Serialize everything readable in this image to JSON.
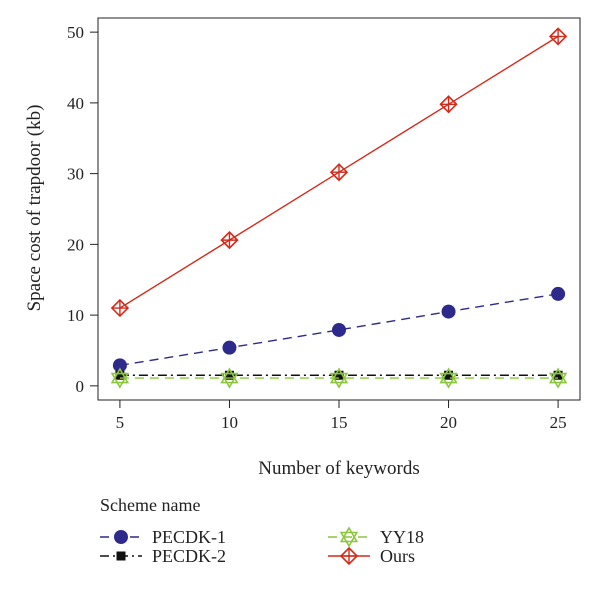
{
  "chart_data": {
    "type": "line",
    "xlabel": "Number of keywords",
    "ylabel": "Space cost of trapdoor (kb)",
    "x": [
      5,
      10,
      15,
      20,
      25
    ],
    "x_ticks": [
      "5",
      "10",
      "15",
      "20",
      "25"
    ],
    "y_ticks": [
      "0",
      "10",
      "20",
      "30",
      "40",
      "50"
    ],
    "xlim": [
      4,
      26
    ],
    "ylim": [
      -2,
      52
    ],
    "grid": false,
    "legend_title": "Scheme name",
    "legend_position": "bottom",
    "series": [
      {
        "name": "PECDK-1",
        "values": [
          2.9,
          5.4,
          7.9,
          10.5,
          13.0
        ],
        "color": "#2e2a8c",
        "marker": "circle",
        "dash": "dashed"
      },
      {
        "name": "PECDK-2",
        "values": [
          1.5,
          1.5,
          1.5,
          1.5,
          1.5
        ],
        "color": "#111111",
        "marker": "square",
        "dash": "dash-dot"
      },
      {
        "name": "YY18",
        "values": [
          1.1,
          1.1,
          1.1,
          1.1,
          1.1
        ],
        "color": "#8cc63f",
        "marker": "star-of-david",
        "dash": "dashed"
      },
      {
        "name": "Ours",
        "values": [
          11.0,
          20.6,
          30.2,
          39.8,
          49.4
        ],
        "color": "#d42a1a",
        "marker": "diamond-cross",
        "dash": "solid"
      }
    ],
    "legend_layout": [
      [
        "PECDK-1",
        "YY18"
      ],
      [
        "PECDK-2",
        "Ours"
      ]
    ]
  }
}
